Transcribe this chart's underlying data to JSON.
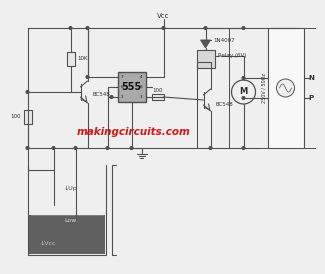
{
  "bg_color": "#efefef",
  "watermark": "makingcircuits.com",
  "watermark_color": "#cc0000",
  "line_color": "#505050",
  "vcc_label": "Vcc",
  "supply_label": "250V / 50Hz",
  "n_label": "N",
  "p_label": "P",
  "up_label": "↓Up",
  "low_label": "Low",
  "vcc_tank_label": "↓Vcc",
  "relay_label": "Relay (6V)",
  "diode_label": "1N4007",
  "r1_label": "10K",
  "r2_label": "100",
  "r3_label": "100",
  "t1_label": "BC548",
  "t2_label": "BC548",
  "ic_label": "555",
  "motor_label": "M",
  "water_color": "#606060",
  "water_light": "#888888"
}
